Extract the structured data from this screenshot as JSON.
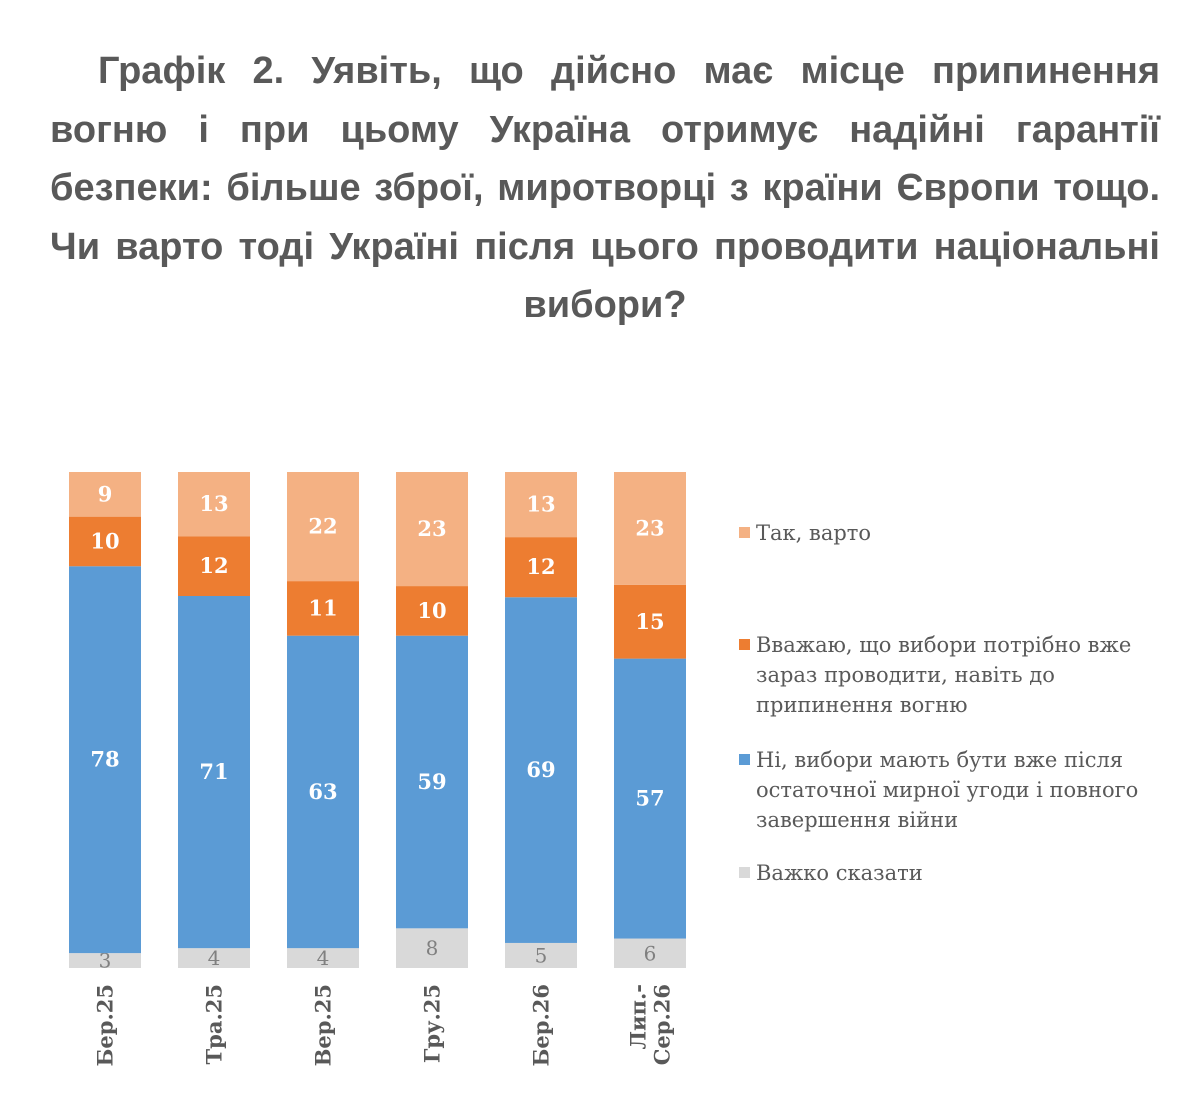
{
  "title": "Графік 2. Уявіть, що дійсно має місце припинення вогню і при цьому Україна отримує надійні гарантії безпеки: більше зброї, миротворці з країни Європи тощо. Чи варто тоді Україні після цього проводити національні вибори?",
  "colors": {
    "yes": "#F4B183",
    "now": "#ED7D31",
    "no": "#5B9BD5",
    "hard": "#D9D9D9"
  },
  "chart_data": {
    "type": "bar",
    "stacked": true,
    "categories": [
      [
        "Бер.25"
      ],
      [
        "Тра.25"
      ],
      [
        "Вер.25"
      ],
      [
        "Гру.25"
      ],
      [
        "Бер.26"
      ],
      [
        "Лип.-",
        "Сер.26"
      ]
    ],
    "series": [
      {
        "key": "hard",
        "name": "Важко сказати",
        "values": [
          3,
          4,
          4,
          8,
          5,
          6
        ]
      },
      {
        "key": "no",
        "name": "Ні, вибори мають бути вже після остаточної мирної угоди і повного завершення війни",
        "values": [
          78,
          71,
          63,
          59,
          69,
          57
        ]
      },
      {
        "key": "now",
        "name": "Вважаю, що вибори потрібно вже зараз проводити, навіть до припинення вогню",
        "values": [
          10,
          12,
          11,
          10,
          12,
          15
        ]
      },
      {
        "key": "yes",
        "name": "Так, варто",
        "values": [
          9,
          13,
          22,
          23,
          13,
          23
        ]
      }
    ],
    "legend": [
      {
        "key": "yes",
        "lines": [
          "Так, варто"
        ]
      },
      {
        "key": "now",
        "lines": [
          "Вважаю, що вибори потрібно вже",
          "зараз проводити, навіть до",
          "припинення вогню"
        ]
      },
      {
        "key": "no",
        "lines": [
          "Ні, вибори мають бути вже після",
          "остаточної мирної угоди і повного",
          "завершення війни"
        ]
      },
      {
        "key": "hard",
        "lines": [
          "Важко сказати"
        ]
      }
    ],
    "ylim": [
      0,
      100
    ],
    "legend_position": "right",
    "grid": false
  }
}
